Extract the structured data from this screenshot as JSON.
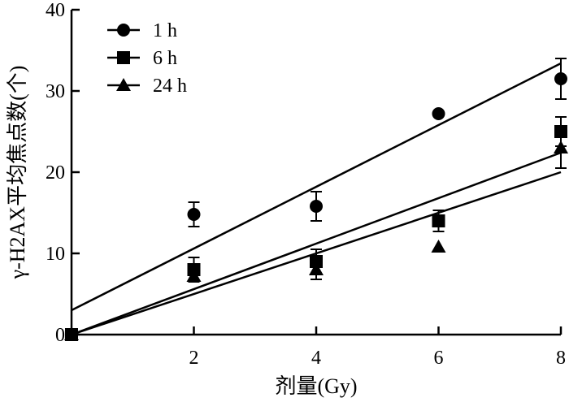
{
  "chart_data": {
    "type": "scatter",
    "xlabel": "剂量(Gy)",
    "ylabel": "γ-H2AX平均焦点数(个)",
    "xlim": [
      0,
      8
    ],
    "ylim": [
      0,
      40
    ],
    "x_ticks": [
      "2",
      "4",
      "6",
      "8"
    ],
    "y_ticks": [
      "0",
      "10",
      "20",
      "30",
      "40"
    ],
    "grid": false,
    "legend_position": "top-left",
    "series": [
      {
        "name": "1 h",
        "marker": "circle",
        "points": [
          {
            "x": 0,
            "y": 0,
            "err": 0
          },
          {
            "x": 2,
            "y": 14.8,
            "err": 1.5
          },
          {
            "x": 4,
            "y": 15.8,
            "err": 1.8
          },
          {
            "x": 6,
            "y": 27.2,
            "err": 0
          },
          {
            "x": 8,
            "y": 31.5,
            "err": 2.5
          }
        ],
        "fit": {
          "intercept": 3.0,
          "slope": 3.8
        }
      },
      {
        "name": "6 h",
        "marker": "square",
        "points": [
          {
            "x": 0,
            "y": 0,
            "err": 0
          },
          {
            "x": 2,
            "y": 8.0,
            "err": 1.5
          },
          {
            "x": 4,
            "y": 9.0,
            "err": 1.5
          },
          {
            "x": 6,
            "y": 14.0,
            "err": 1.3
          },
          {
            "x": 8,
            "y": 25.0,
            "err": 1.8
          }
        ],
        "fit": {
          "intercept": 0,
          "slope": 2.8
        }
      },
      {
        "name": "24 h",
        "marker": "triangle",
        "points": [
          {
            "x": 0,
            "y": 0,
            "err": 0
          },
          {
            "x": 2,
            "y": 7.2,
            "err": 0
          },
          {
            "x": 4,
            "y": 8.0,
            "err": 1.2
          },
          {
            "x": 6,
            "y": 10.8,
            "err": 0
          },
          {
            "x": 8,
            "y": 23.0,
            "err": 2.5
          }
        ],
        "fit": {
          "intercept": 0,
          "slope": 2.5
        }
      }
    ]
  }
}
